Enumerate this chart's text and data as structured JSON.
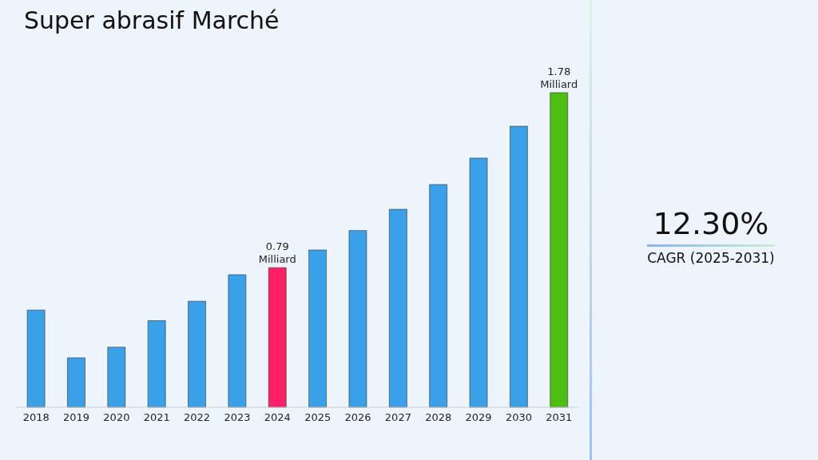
{
  "chart_data": {
    "type": "bar",
    "title": "Super abrasif Marché",
    "categories": [
      "2018",
      "2019",
      "2020",
      "2021",
      "2022",
      "2023",
      "2024",
      "2025",
      "2026",
      "2027",
      "2028",
      "2029",
      "2030",
      "2031"
    ],
    "values": [
      0.55,
      0.28,
      0.34,
      0.49,
      0.6,
      0.75,
      0.79,
      0.89,
      1.0,
      1.12,
      1.26,
      1.41,
      1.59,
      1.78
    ],
    "colors": [
      "#3aa0e8",
      "#3aa0e8",
      "#3aa0e8",
      "#3aa0e8",
      "#3aa0e8",
      "#3aa0e8",
      "#ff1f66",
      "#3aa0e8",
      "#3aa0e8",
      "#3aa0e8",
      "#3aa0e8",
      "#3aa0e8",
      "#3aa0e8",
      "#4cbf12"
    ],
    "value_labels": [
      null,
      null,
      null,
      null,
      null,
      null,
      "0.79 Milliard",
      null,
      null,
      null,
      null,
      null,
      null,
      "1.78 Milliard"
    ],
    "annotations": [
      "12.30%",
      "CAGR (2025-2031)"
    ],
    "grid": false
  }
}
